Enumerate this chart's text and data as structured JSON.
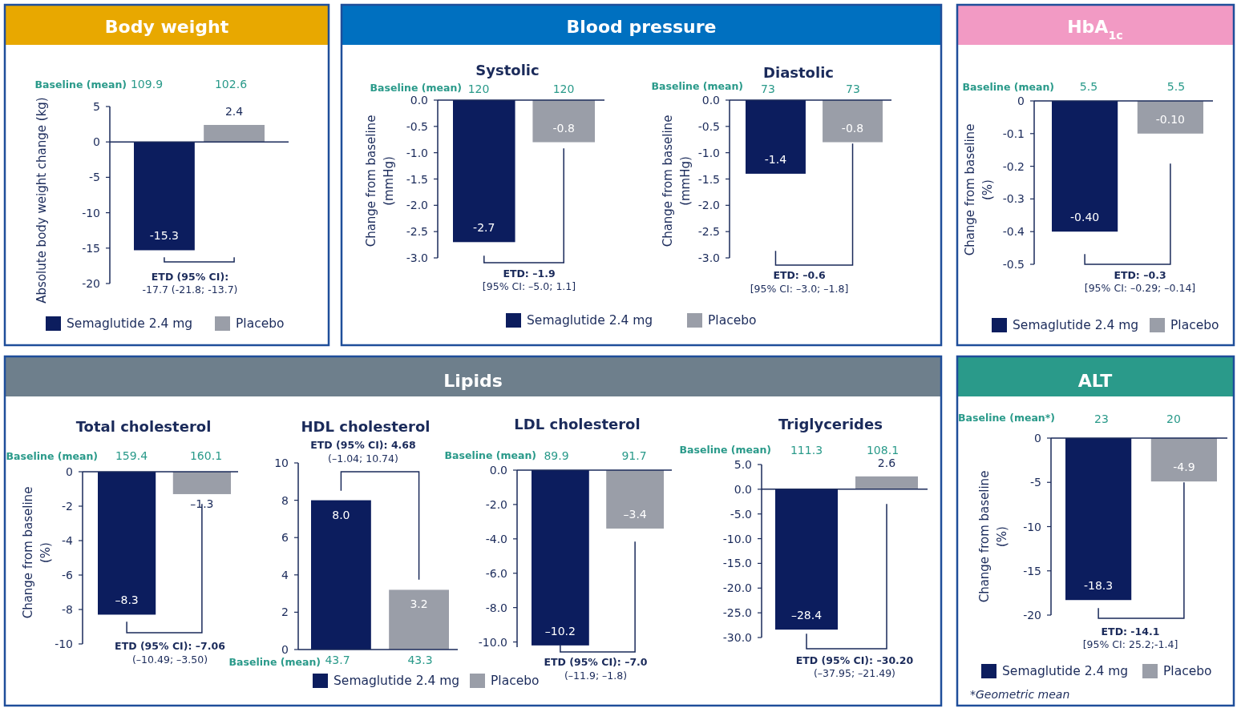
{
  "chart_data": [
    {
      "type": "bar",
      "title": "Body weight",
      "categories": [
        null
      ],
      "ylabel": "Absolute body weight change (kg)",
      "ylim": [
        -20,
        5
      ],
      "yticks": [
        -20,
        -15,
        -10,
        -5,
        0,
        5
      ],
      "legend": "bottom",
      "annotations": [
        "Baseline (mean)",
        "109.9",
        "102.6",
        "ETD (95% CI):",
        "-17.7 (-21.8; -13.7)"
      ],
      "series": [
        {
          "name": "Semaglutide 2.4 mg",
          "color": "#0c1d5e",
          "values": [
            -15.3
          ],
          "value_labels": [
            "-15.3"
          ]
        },
        {
          "name": "Placebo",
          "color": "#9a9ea8",
          "values": [
            2.4
          ],
          "value_labels": [
            "2.4"
          ]
        }
      ]
    },
    {
      "type": "bar",
      "title": "Systolic",
      "categories": [
        null
      ],
      "ylabel": "Change from baseline (mmHg)",
      "ylim": [
        -3,
        0
      ],
      "yticks": [
        {
          "value": -3,
          "label": "-3.0"
        },
        -2.5,
        {
          "value": -2,
          "label": "-2.0"
        },
        -1.5,
        {
          "value": -1,
          "label": "-1.0"
        },
        -0.5,
        {
          "value": 0,
          "label": "0.0"
        }
      ],
      "legend": "bottom",
      "annotations": [
        "Blood pressure",
        "Baseline (mean)",
        "120",
        "120",
        "ETD: –1.9",
        "[95% CI: –5.0; 1.1]"
      ],
      "series": [
        {
          "name": "Semaglutide 2.4 mg",
          "color": "#0c1d5e",
          "values": [
            -2.7
          ],
          "value_labels": [
            "-2.7"
          ]
        },
        {
          "name": "Placebo",
          "color": "#9a9ea8",
          "values": [
            -0.8
          ],
          "value_labels": [
            "-0.8"
          ]
        }
      ]
    },
    {
      "type": "bar",
      "title": "Diastolic",
      "categories": [
        null
      ],
      "ylabel": "Change from baseline (mmHg)",
      "ylim": [
        -3,
        0
      ],
      "yticks": [
        {
          "value": -3,
          "label": "-3.0"
        },
        -2.5,
        {
          "value": -2,
          "label": "-2.0"
        },
        -1.5,
        {
          "value": -1,
          "label": "-1.0"
        },
        -0.5,
        {
          "value": 0,
          "label": "0.0"
        }
      ],
      "annotations": [
        "Baseline (mean)",
        "73",
        "73",
        "ETD: –0.6",
        "[95% CI: –3.0; –1.8]"
      ],
      "series": [
        {
          "color": "#0c1d5e",
          "values": [
            -1.4
          ],
          "value_labels": [
            "-1.4"
          ]
        },
        {
          "color": "#9a9ea8",
          "values": [
            -0.8
          ],
          "value_labels": [
            "-0.8"
          ]
        }
      ]
    },
    {
      "type": "bar",
      "title": "HbA$_{1c}$",
      "categories": [
        null
      ],
      "ylabel": "Change from baseline (%)",
      "ylim": [
        -0.5,
        0
      ],
      "yticks": [
        -0.5,
        -0.4,
        -0.3,
        -0.2,
        -0.1,
        0
      ],
      "legend": "bottom",
      "annotations": [
        "Baseline (mean)",
        "5.5",
        "5.5",
        "ETD: –0.3",
        "[95% CI: –0.29; –0.14]"
      ],
      "series": [
        {
          "name": "Semaglutide 2.4 mg",
          "color": "#0c1d5e",
          "values": [
            -0.4
          ],
          "value_labels": [
            "-0.40"
          ]
        },
        {
          "name": "Placebo",
          "color": "#9a9ea8",
          "values": [
            -0.1
          ],
          "value_labels": [
            "-0.10"
          ]
        }
      ]
    },
    {
      "type": "bar",
      "title": "Total cholesterol",
      "categories": [
        null
      ],
      "ylabel": "Change from baseline (%)",
      "ylim": [
        -10,
        0
      ],
      "yticks": [
        -10,
        -8,
        -6,
        -4,
        -2,
        0
      ],
      "annotations": [
        "Lipids",
        "Baseline (mean)",
        "159.4",
        "160.1",
        "ETD (95% CI): –7.06",
        "(–10.49; –3.50)"
      ],
      "series": [
        {
          "color": "#0c1d5e",
          "values": [
            -8.3
          ],
          "value_labels": [
            "–8.3"
          ]
        },
        {
          "color": "#9a9ea8",
          "values": [
            -1.3
          ],
          "value_labels": [
            "–1.3"
          ]
        }
      ]
    },
    {
      "type": "bar",
      "title": "HDL cholesterol",
      "categories": [
        null
      ],
      "ylim": [
        0,
        10
      ],
      "yticks": [
        0,
        2,
        4,
        6,
        8,
        10
      ],
      "legend": "bottom",
      "annotations": [
        "Baseline (mean)",
        "43.7",
        "43.3",
        "ETD (95% CI): 4.68",
        "(–1.04; 10.74)"
      ],
      "series": [
        {
          "name": "Semaglutide 2.4 mg",
          "color": "#0c1d5e",
          "values": [
            8.0
          ],
          "value_labels": [
            "8.0"
          ]
        },
        {
          "name": "Placebo",
          "color": "#9a9ea8",
          "values": [
            3.2
          ],
          "value_labels": [
            "3.2"
          ]
        }
      ]
    },
    {
      "type": "bar",
      "title": "LDL cholesterol",
      "categories": [
        null
      ],
      "ylim": [
        -10.3,
        0
      ],
      "yticks": [
        {
          "value": -10,
          "label": "-10.0"
        },
        {
          "value": -8,
          "label": "-8.0"
        },
        {
          "value": -6,
          "label": "-6.0"
        },
        {
          "value": -4,
          "label": "-4.0"
        },
        {
          "value": -2,
          "label": "-2.0"
        },
        {
          "value": 0,
          "label": "0.0"
        }
      ],
      "annotations": [
        "Baseline (mean)",
        "89.9",
        "91.7",
        "ETD (95% CI): –7.0",
        "(–11.9; –1.8)"
      ],
      "series": [
        {
          "color": "#0c1d5e",
          "values": [
            -10.2
          ],
          "value_labels": [
            "–10.2"
          ]
        },
        {
          "color": "#9a9ea8",
          "values": [
            -3.4
          ],
          "value_labels": [
            "–3.4"
          ]
        }
      ]
    },
    {
      "type": "bar",
      "title": "Triglycerides",
      "categories": [
        null
      ],
      "ylim": [
        -30,
        5
      ],
      "yticks": [
        {
          "value": -30,
          "label": "-30.0"
        },
        {
          "value": -25,
          "label": "-25.0"
        },
        {
          "value": -20,
          "label": "-20.0"
        },
        {
          "value": -15,
          "label": "-15.0"
        },
        {
          "value": -10,
          "label": "-10.0"
        },
        {
          "value": -5,
          "label": "-5.0"
        },
        {
          "value": 0,
          "label": "0.0"
        },
        {
          "value": 5,
          "label": "5.0"
        }
      ],
      "annotations": [
        "Baseline (mean)",
        "111.3",
        "108.1",
        "ETD (95% CI): –30.20",
        "(–37.95; –21.49)"
      ],
      "series": [
        {
          "color": "#0c1d5e",
          "values": [
            -28.4
          ],
          "value_labels": [
            "–28.4"
          ]
        },
        {
          "color": "#9a9ea8",
          "values": [
            2.6
          ],
          "value_labels": [
            "2.6"
          ]
        }
      ]
    },
    {
      "type": "bar",
      "title": "ALT",
      "categories": [
        null
      ],
      "ylabel": "Change from baseline (%)",
      "ylim": [
        -20,
        0
      ],
      "yticks": [
        -20,
        -15,
        -10,
        -5,
        0
      ],
      "legend": "bottom",
      "annotations": [
        "Baseline (mean*)",
        "23",
        "20",
        "ETD: -14.1",
        "[95% CI: 25.2;-1.4]",
        "*Geometric mean"
      ],
      "series": [
        {
          "name": "Semaglutide 2.4 mg",
          "color": "#0c1d5e",
          "values": [
            -18.3
          ],
          "value_labels": [
            "-18.3"
          ]
        },
        {
          "name": "Placebo",
          "color": "#9a9ea8",
          "values": [
            -4.9
          ],
          "value_labels": [
            "-4.9"
          ]
        }
      ]
    }
  ]
}
